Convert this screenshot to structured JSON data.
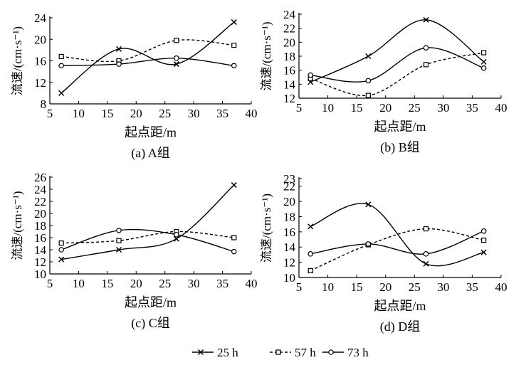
{
  "chart_data": [
    {
      "type": "line",
      "caption": "(a) A组",
      "xlabel": "起点距/m",
      "ylabel": "流速/(cm·s⁻¹)",
      "xlim": [
        5,
        40
      ],
      "ylim": [
        8,
        24
      ],
      "xticks": [
        5,
        10,
        15,
        20,
        25,
        30,
        35,
        40
      ],
      "yticks": [
        8,
        12,
        16,
        20,
        24
      ],
      "x": [
        7,
        17,
        27,
        37
      ],
      "series": [
        {
          "name": "25 h",
          "values": [
            10.0,
            18.2,
            15.4,
            23.2
          ]
        },
        {
          "name": "57 h",
          "values": [
            16.8,
            16.0,
            19.8,
            18.9
          ]
        },
        {
          "name": "73 h",
          "values": [
            15.1,
            15.4,
            16.5,
            15.1
          ]
        }
      ]
    },
    {
      "type": "line",
      "caption": "(b) B组",
      "xlabel": "起点距/m",
      "ylabel": "流速/(cm·s⁻¹)",
      "xlim": [
        5,
        40
      ],
      "ylim": [
        12,
        24
      ],
      "xticks": [
        5,
        10,
        15,
        20,
        25,
        30,
        35,
        40
      ],
      "yticks": [
        12,
        14,
        16,
        18,
        20,
        22,
        24
      ],
      "x": [
        7,
        17,
        27,
        37
      ],
      "series": [
        {
          "name": "25 h",
          "values": [
            14.3,
            18.0,
            23.2,
            17.2
          ]
        },
        {
          "name": "57 h",
          "values": [
            14.8,
            12.4,
            16.8,
            18.5
          ]
        },
        {
          "name": "73 h",
          "values": [
            15.3,
            14.5,
            19.2,
            16.3
          ]
        }
      ]
    },
    {
      "type": "line",
      "caption": "(c) C组",
      "xlabel": "起点距/m",
      "ylabel": "流速/(cm·s⁻¹)",
      "xlim": [
        5,
        40
      ],
      "ylim": [
        10,
        26
      ],
      "xticks": [
        5,
        10,
        15,
        20,
        25,
        30,
        35,
        40
      ],
      "yticks": [
        10,
        12,
        14,
        16,
        18,
        20,
        22,
        24,
        26
      ],
      "x": [
        7,
        17,
        27,
        37
      ],
      "series": [
        {
          "name": "25 h",
          "values": [
            12.4,
            14.0,
            15.8,
            24.7
          ]
        },
        {
          "name": "57 h",
          "values": [
            15.1,
            15.5,
            17.0,
            16.0
          ]
        },
        {
          "name": "73 h",
          "values": [
            14.0,
            17.2,
            16.5,
            13.7
          ]
        }
      ]
    },
    {
      "type": "line",
      "caption": "(d) D组",
      "xlabel": "起点距/m",
      "ylabel": "流速/(cm·s⁻¹)",
      "xlim": [
        5,
        40
      ],
      "ylim": [
        10,
        23
      ],
      "xticks": [
        5,
        10,
        15,
        20,
        25,
        30,
        35,
        40
      ],
      "yticks": [
        10,
        12,
        14,
        16,
        18,
        20,
        22,
        23
      ],
      "x": [
        7,
        17,
        27,
        37
      ],
      "series": [
        {
          "name": "25 h",
          "values": [
            16.7,
            19.6,
            11.8,
            13.3
          ]
        },
        {
          "name": "57 h",
          "values": [
            10.9,
            14.3,
            16.4,
            14.9
          ]
        },
        {
          "name": "73 h",
          "values": [
            13.1,
            14.4,
            13.1,
            16.1
          ]
        }
      ]
    }
  ],
  "legend": [
    {
      "label": "25 h",
      "marker": "x",
      "dash": "solid"
    },
    {
      "label": "57 h",
      "marker": "square",
      "dash": "dashed"
    },
    {
      "label": "73 h",
      "marker": "circle",
      "dash": "solid"
    }
  ]
}
